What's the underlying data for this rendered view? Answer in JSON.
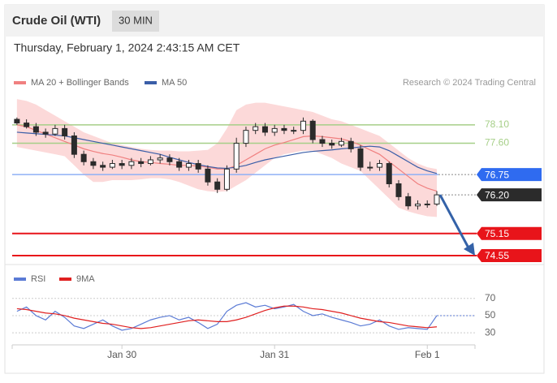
{
  "header": {
    "title": "Crude Oil (WTI)",
    "interval": "30 MIN",
    "timestamp": "Thursday, February 1, 2024 2:43:15 AM CET",
    "source": "Research © 2024 Trading Central"
  },
  "chart_data": [
    {
      "type": "candlestick",
      "x": [
        0,
        1,
        2,
        3,
        4,
        5,
        6,
        7,
        8,
        9,
        10,
        11,
        12,
        13,
        14,
        15,
        16,
        17,
        18,
        19,
        20,
        21,
        22,
        23,
        24,
        25,
        26,
        27,
        28,
        29,
        30,
        31,
        32,
        33,
        34,
        35,
        36,
        37,
        38,
        39,
        40,
        41,
        42,
        43,
        44
      ],
      "open": [
        78.25,
        78.15,
        78.05,
        77.9,
        77.85,
        78.0,
        77.8,
        77.3,
        77.1,
        77.0,
        76.95,
        77.05,
        77.0,
        77.1,
        77.05,
        77.15,
        77.2,
        77.1,
        76.95,
        77.05,
        76.9,
        76.55,
        76.35,
        76.9,
        77.6,
        77.95,
        78.05,
        77.9,
        78.0,
        77.95,
        77.95,
        78.2,
        77.7,
        77.6,
        77.55,
        77.65,
        77.45,
        76.95,
        76.95,
        77.05,
        76.5,
        76.15,
        75.9,
        75.95,
        75.95
      ],
      "high": [
        78.3,
        78.25,
        78.15,
        78.0,
        78.1,
        78.1,
        77.9,
        77.4,
        77.2,
        77.1,
        77.15,
        77.15,
        77.2,
        77.2,
        77.25,
        77.3,
        77.3,
        77.2,
        77.15,
        77.15,
        77.0,
        76.65,
        77.0,
        77.75,
        78.05,
        78.15,
        78.15,
        78.1,
        78.1,
        78.05,
        78.3,
        78.25,
        77.8,
        77.7,
        77.75,
        77.75,
        77.55,
        77.1,
        77.15,
        77.1,
        76.6,
        76.25,
        76.05,
        76.05,
        76.3
      ],
      "low": [
        78.1,
        78.0,
        77.8,
        77.75,
        77.8,
        77.7,
        77.2,
        77.0,
        76.9,
        76.85,
        76.9,
        76.9,
        76.9,
        76.95,
        77.0,
        77.05,
        77.0,
        76.85,
        76.85,
        76.8,
        76.45,
        76.25,
        76.3,
        76.8,
        77.5,
        77.85,
        77.8,
        77.8,
        77.85,
        77.85,
        77.85,
        77.6,
        77.5,
        77.45,
        77.5,
        77.35,
        76.85,
        76.85,
        76.85,
        76.4,
        76.05,
        75.8,
        75.8,
        75.85,
        75.9
      ],
      "close": [
        78.15,
        78.05,
        77.9,
        77.85,
        78.0,
        77.8,
        77.3,
        77.1,
        77.0,
        76.95,
        77.05,
        77.0,
        77.1,
        77.05,
        77.15,
        77.2,
        77.1,
        76.95,
        77.05,
        76.9,
        76.55,
        76.35,
        76.9,
        77.6,
        77.95,
        78.05,
        77.9,
        78.0,
        77.95,
        77.95,
        78.2,
        77.7,
        77.6,
        77.55,
        77.65,
        77.45,
        76.95,
        76.95,
        77.05,
        76.5,
        76.15,
        75.9,
        75.95,
        75.95,
        76.2
      ],
      "candle_color": "#2b2b2b",
      "series": [
        {
          "name": "MA 20 + Bollinger Bands",
          "color": "#f08080",
          "band_color": "#fcd9d9",
          "values": [
            78.1,
            78.05,
            77.95,
            77.85,
            77.75,
            77.65,
            77.55,
            77.45,
            77.38,
            77.32,
            77.28,
            77.22,
            77.15,
            77.1,
            77.08,
            77.05,
            77.03,
            77.0,
            77.0,
            76.98,
            76.95,
            76.9,
            76.9,
            77.0,
            77.15,
            77.3,
            77.45,
            77.55,
            77.62,
            77.7,
            77.78,
            77.8,
            77.78,
            77.75,
            77.72,
            77.65,
            77.55,
            77.42,
            77.3,
            77.1,
            76.9,
            76.7,
            76.5,
            76.38,
            76.3
          ],
          "upper": [
            78.8,
            78.75,
            78.65,
            78.5,
            78.35,
            78.2,
            78.05,
            77.9,
            77.8,
            77.7,
            77.6,
            77.55,
            77.5,
            77.45,
            77.42,
            77.4,
            77.4,
            77.38,
            77.38,
            77.4,
            77.42,
            77.6,
            78.0,
            78.5,
            78.65,
            78.7,
            78.7,
            78.65,
            78.6,
            78.55,
            78.5,
            78.45,
            78.35,
            78.25,
            78.2,
            78.1,
            78.0,
            77.9,
            77.8,
            77.6,
            77.4,
            77.2,
            77.05,
            76.95,
            76.9
          ],
          "lower": [
            77.5,
            77.45,
            77.4,
            77.35,
            77.3,
            77.25,
            77.0,
            76.75,
            76.55,
            76.55,
            76.6,
            76.6,
            76.6,
            76.62,
            76.65,
            76.65,
            76.62,
            76.55,
            76.45,
            76.35,
            76.3,
            76.28,
            76.3,
            76.45,
            76.6,
            76.8,
            77.0,
            77.2,
            77.3,
            77.35,
            77.4,
            77.4,
            77.3,
            77.2,
            77.05,
            76.95,
            76.85,
            76.6,
            76.35,
            76.1,
            75.85,
            75.75,
            75.68,
            75.62,
            75.6
          ]
        },
        {
          "name": "MA 50",
          "color": "#3a5ea8",
          "values": [
            77.9,
            77.88,
            77.86,
            77.84,
            77.82,
            77.8,
            77.75,
            77.7,
            77.65,
            77.6,
            77.55,
            77.5,
            77.45,
            77.4,
            77.35,
            77.3,
            77.22,
            77.15,
            77.08,
            77.02,
            76.97,
            76.93,
            76.92,
            76.95,
            77.0,
            77.08,
            77.15,
            77.2,
            77.25,
            77.3,
            77.35,
            77.38,
            77.4,
            77.42,
            77.45,
            77.47,
            77.5,
            77.52,
            77.5,
            77.4,
            77.25,
            77.1,
            76.95,
            76.85,
            76.78
          ]
        }
      ],
      "levels": [
        {
          "value": 78.1,
          "label": "78.10",
          "color": "#a6cf88",
          "tag": false
        },
        {
          "value": 77.6,
          "label": "77.60",
          "color": "#a6cf88",
          "tag": false
        },
        {
          "value": 76.75,
          "label": "76.75",
          "color": "#2f6bf0",
          "tag": true
        },
        {
          "value": 76.2,
          "label": "76.20",
          "color": "#2b2b2b",
          "tag": true
        },
        {
          "value": 75.15,
          "label": "75.15",
          "color": "#e8141a",
          "tag": true
        },
        {
          "value": 74.55,
          "label": "74.55",
          "color": "#e8141a",
          "tag": true
        }
      ],
      "arrow_color": "#3462a8",
      "xlim": [
        -0.5,
        48
      ],
      "ylim": [
        74.33,
        78.89
      ]
    },
    {
      "type": "line",
      "series": [
        {
          "name": "RSI",
          "color": "#5b7bd5",
          "values": [
            55,
            60,
            50,
            45,
            55,
            48,
            38,
            35,
            40,
            45,
            38,
            33,
            35,
            40,
            45,
            48,
            50,
            45,
            48,
            42,
            35,
            40,
            55,
            62,
            65,
            60,
            62,
            58,
            60,
            63,
            55,
            50,
            52,
            48,
            45,
            42,
            38,
            40,
            45,
            38,
            34,
            36,
            35,
            34,
            50
          ]
        },
        {
          "name": "9MA",
          "color": "#e02020",
          "values": [
            58,
            57,
            55,
            53,
            52,
            50,
            47,
            45,
            43,
            41,
            40,
            38,
            36,
            35,
            36,
            38,
            40,
            42,
            44,
            45,
            44,
            43,
            43,
            45,
            48,
            52,
            56,
            59,
            61,
            61,
            60,
            58,
            57,
            55,
            53,
            50,
            47,
            45,
            43,
            42,
            40,
            38,
            37,
            36,
            37
          ]
        }
      ],
      "xticks": [
        {
          "value": 11,
          "label": "Jan 30"
        },
        {
          "value": 27,
          "label": "Jan 31"
        },
        {
          "value": 43,
          "label": "Feb 1"
        }
      ],
      "ylim": [
        16,
        82
      ],
      "yticks": [
        30,
        50,
        70
      ],
      "grid": true
    }
  ]
}
